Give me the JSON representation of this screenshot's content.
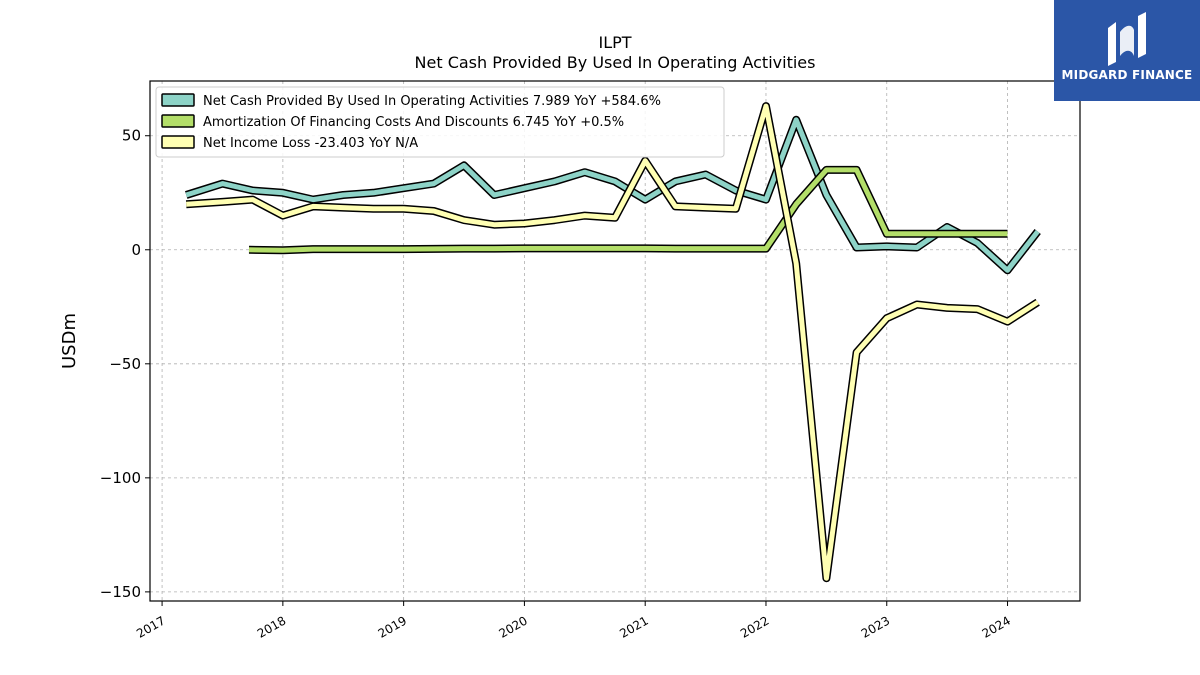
{
  "brand": {
    "name": "MIDGARD FINANCE",
    "color": "#2b56a7"
  },
  "chart_data": {
    "type": "line",
    "title": "ILPT",
    "subtitle": "Net Cash Provided By Used In Operating Activities",
    "xlabel": "",
    "ylabel": "USDm",
    "xlim": [
      2016.9,
      2024.6
    ],
    "ylim": [
      -154,
      74
    ],
    "yticks": [
      50,
      0,
      -50,
      -100,
      -150
    ],
    "ytick_labels": [
      "50",
      "0",
      "−50",
      "−100",
      "−150"
    ],
    "xticks": [
      2017,
      2018,
      2019,
      2020,
      2021,
      2022,
      2023,
      2024
    ],
    "xtick_labels": [
      "2017",
      "2018",
      "2019",
      "2020",
      "2021",
      "2022",
      "2023",
      "2024"
    ],
    "grid": true,
    "legend_position": "top-left",
    "series": [
      {
        "name": "Net Cash Provided By Used In Operating Activities",
        "legend_label": "Net Cash Provided By Used In Operating Activities  7.989 YoY +584.6%",
        "color": "#8dd3c7",
        "x": [
          2017.2,
          2017.5,
          2017.75,
          2018.0,
          2018.25,
          2018.5,
          2018.75,
          2019.0,
          2019.25,
          2019.5,
          2019.75,
          2020.0,
          2020.25,
          2020.5,
          2020.75,
          2021.0,
          2021.25,
          2021.5,
          2021.75,
          2022.0,
          2022.25,
          2022.5,
          2022.75,
          2023.0,
          2023.25,
          2023.5,
          2023.75,
          2024.0,
          2024.25
        ],
        "y": [
          24,
          29,
          26,
          25,
          22,
          24,
          25,
          27,
          29,
          37,
          24,
          27,
          30,
          34,
          30,
          22,
          30,
          33,
          26,
          22,
          57,
          24,
          1,
          1.5,
          1,
          10,
          3,
          -9,
          8
        ]
      },
      {
        "name": "Amortization Of Financing Costs And Discounts",
        "legend_label": "Amortization Of Financing Costs And Discounts  6.745 YoY +0.5%",
        "color": "#b3de69",
        "x": [
          2017.72,
          2018.0,
          2018.25,
          2018.5,
          2018.75,
          2019.0,
          2019.25,
          2019.5,
          2019.75,
          2020.0,
          2020.25,
          2020.5,
          2020.75,
          2021.0,
          2021.25,
          2021.5,
          2021.75,
          2022.0,
          2022.25,
          2022.5,
          2022.75,
          2023.0,
          2023.25,
          2023.5,
          2023.75,
          2024.0
        ],
        "y": [
          0,
          -0.2,
          0.3,
          0.3,
          0.3,
          0.3,
          0.4,
          0.5,
          0.5,
          0.6,
          0.6,
          0.6,
          0.6,
          0.6,
          0.5,
          0.5,
          0.5,
          0.5,
          20,
          35,
          35,
          7,
          7,
          7,
          7,
          7
        ]
      },
      {
        "name": "Net Income Loss",
        "legend_label": "Net Income Loss  -23.403 YoY N/A",
        "color": "#ffffb3",
        "x": [
          2017.2,
          2017.5,
          2017.75,
          2018.0,
          2018.25,
          2018.5,
          2018.75,
          2019.0,
          2019.25,
          2019.5,
          2019.75,
          2020.0,
          2020.25,
          2020.5,
          2020.75,
          2021.0,
          2021.25,
          2021.5,
          2021.75,
          2022.0,
          2022.25,
          2022.5,
          2022.75,
          2023.0,
          2023.25,
          2023.5,
          2023.75,
          2024.0,
          2024.25
        ],
        "y": [
          20,
          21,
          22,
          15,
          19,
          18.5,
          18,
          18,
          17,
          13,
          11,
          11.5,
          13,
          15,
          14,
          39,
          19,
          18.5,
          18,
          63,
          -6,
          -144,
          -45,
          -30,
          -24,
          -25.5,
          -26,
          -31.5,
          -23
        ]
      }
    ]
  }
}
